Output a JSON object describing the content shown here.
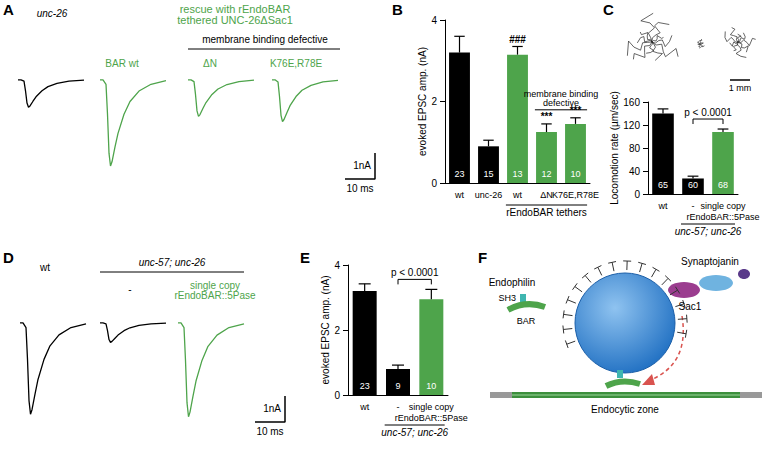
{
  "panels": [
    {
      "label": "A",
      "header": {
        "text": "rescue with rEndoBAR\ntethered UNC-26ΔSac1",
        "color": "#4ea44b"
      },
      "subheader": "membrane binding defective",
      "scale_bar": {
        "x": 10,
        "x_label": "10 ms",
        "y": 1,
        "y_label": "1nA"
      }
    },
    {
      "label": "B"
    },
    {
      "label": "C",
      "tracks_scale": {
        "value": 1,
        "label": "1 mm"
      }
    },
    {
      "label": "D",
      "group": "unc-57; unc-26",
      "scale_bar": {
        "x": 10,
        "x_label": "10 ms",
        "y": 1,
        "y_label": "1nA"
      }
    },
    {
      "label": "E"
    },
    {
      "label": "F",
      "texts": {
        "endophilin": "Endophilin",
        "sh3": "SH3",
        "bar": "BAR",
        "synaptojanin": "Synaptojanin",
        "sac1": "Sac1",
        "zone": "Endocytic zone"
      }
    }
  ],
  "chart_data": [
    {
      "panel": "A",
      "type": "line",
      "title": "unc-26",
      "x": [
        0,
        1,
        2,
        2.5,
        3,
        3.5,
        4,
        5,
        6,
        8,
        10,
        13,
        17,
        22
      ],
      "values": [
        0,
        0,
        -0.05,
        -0.42,
        -0.89,
        -1.05,
        -1.0,
        -0.82,
        -0.65,
        -0.42,
        -0.26,
        -0.14,
        -0.05,
        -0.01
      ],
      "color": "#000000",
      "xlim": [
        0,
        22
      ],
      "ylim": [
        -3.8,
        0.3
      ],
      "tick_labels": false
    },
    {
      "panel": "A",
      "type": "line",
      "title": "BAR wt",
      "x": [
        0,
        1,
        2,
        2.5,
        3,
        3.5,
        4,
        5,
        6,
        8,
        10,
        13,
        17,
        22
      ],
      "values": [
        0,
        0,
        -0.17,
        -1.32,
        -2.81,
        -3.3,
        -3.14,
        -2.57,
        -2.05,
        -1.32,
        -0.83,
        -0.43,
        -0.17,
        -0.03
      ],
      "color": "#4ea44b",
      "xlim": [
        0,
        22
      ],
      "ylim": [
        -3.8,
        0.3
      ],
      "tick_labels": false
    },
    {
      "panel": "A",
      "type": "line",
      "title": "ΔN",
      "x": [
        0,
        1,
        2,
        2.5,
        3,
        3.5,
        4,
        5,
        6,
        8,
        10,
        13,
        17,
        22
      ],
      "values": [
        0,
        0,
        -0.07,
        -0.56,
        -1.19,
        -1.4,
        -1.33,
        -1.09,
        -0.87,
        -0.56,
        -0.35,
        -0.18,
        -0.07,
        -0.01
      ],
      "color": "#4ea44b",
      "xlim": [
        0,
        22
      ],
      "ylim": [
        -3.8,
        0.3
      ],
      "tick_labels": false
    },
    {
      "panel": "A",
      "type": "line",
      "title": "K76E,R78E",
      "x": [
        0,
        1,
        2,
        2.5,
        3,
        3.5,
        4,
        5,
        6,
        8,
        10,
        13,
        17,
        22
      ],
      "values": [
        0,
        0,
        -0.08,
        -0.64,
        -1.36,
        -1.6,
        -1.52,
        -1.25,
        -0.99,
        -0.64,
        -0.4,
        -0.21,
        -0.08,
        -0.02
      ],
      "color": "#4ea44b",
      "xlim": [
        0,
        22
      ],
      "ylim": [
        -3.8,
        0.3
      ],
      "tick_labels": false
    },
    {
      "panel": "B",
      "type": "bar",
      "y_label": "evoked EPSC amp. (nA)",
      "categories": [
        "wt",
        "unc-26",
        "wt",
        "ΔN",
        "K76E,R78E"
      ],
      "values": [
        3.2,
        0.9,
        3.15,
        1.25,
        1.45
      ],
      "errors": [
        0.4,
        0.15,
        0.2,
        0.2,
        0.15
      ],
      "n": [
        23,
        15,
        13,
        12,
        10
      ],
      "colors": [
        "#000000",
        "#000000",
        "#4ea44b",
        "#4ea44b",
        "#4ea44b"
      ],
      "significance": [
        null,
        null,
        "###",
        "***",
        "***"
      ],
      "axis_group": {
        "label": "rEndoBAR tethers",
        "span": [
          2,
          4
        ]
      },
      "top_group": {
        "label": "membrane binding\ndefective",
        "span": [
          3,
          4
        ]
      },
      "ylim": [
        0,
        4
      ],
      "yticks": [
        0,
        2,
        4
      ]
    },
    {
      "panel": "C",
      "type": "bar",
      "y_label": "Locomotion rate (µm/sec)",
      "categories": [
        "wt",
        "-",
        "single copy\nrEndoBAR::5Pase"
      ],
      "values": [
        140,
        27,
        108
      ],
      "errors": [
        8,
        4,
        5
      ],
      "n": [
        65,
        60,
        68
      ],
      "colors": [
        "#000000",
        "#000000",
        "#4ea44b"
      ],
      "axis_group": {
        "label": "unc-57; unc-26",
        "span": [
          1,
          2
        ]
      },
      "comparison": {
        "label": "p < 0.0001",
        "span": [
          1,
          2
        ]
      },
      "ylim": [
        0,
        160
      ],
      "yticks": [
        0,
        40,
        80,
        120,
        160
      ]
    },
    {
      "panel": "D",
      "type": "line",
      "title": "wt",
      "x": [
        0,
        1,
        2,
        2.5,
        3,
        3.5,
        4,
        5,
        6,
        8,
        10,
        13,
        17,
        22
      ],
      "values": [
        0,
        0,
        -0.18,
        -1.4,
        -2.98,
        -3.5,
        -3.33,
        -2.73,
        -2.17,
        -1.4,
        -0.88,
        -0.46,
        -0.18,
        -0.04
      ],
      "color": "#000000",
      "xlim": [
        0,
        22
      ],
      "ylim": [
        -3.8,
        0.3
      ],
      "tick_labels": false
    },
    {
      "panel": "D",
      "type": "line",
      "title": "-",
      "x": [
        0,
        1,
        2,
        2.5,
        3,
        3.5,
        4,
        5,
        6,
        8,
        10,
        13,
        17,
        22
      ],
      "values": [
        0,
        0,
        -0.04,
        -0.3,
        -0.64,
        -0.75,
        -0.71,
        -0.59,
        -0.47,
        -0.3,
        -0.19,
        -0.1,
        -0.04,
        -0.01
      ],
      "color": "#000000",
      "xlim": [
        0,
        22
      ],
      "ylim": [
        -3.8,
        0.3
      ],
      "tick_labels": false
    },
    {
      "panel": "D",
      "type": "line",
      "title": "single copy\nrEndoBAR::5Pase",
      "x": [
        0,
        1,
        2,
        2.5,
        3,
        3.5,
        4,
        5,
        6,
        8,
        10,
        13,
        17,
        22
      ],
      "values": [
        0,
        0,
        -0.18,
        -1.44,
        -3.06,
        -3.6,
        -3.42,
        -2.81,
        -2.23,
        -1.44,
        -0.9,
        -0.47,
        -0.18,
        -0.04
      ],
      "color": "#4ea44b",
      "xlim": [
        0,
        22
      ],
      "ylim": [
        -3.8,
        0.3
      ],
      "tick_labels": false
    },
    {
      "panel": "E",
      "type": "bar",
      "y_label": "evoked EPSC amp. (nA)",
      "categories": [
        "wt",
        "-",
        "single copy\nrEndoBAR::5Pase"
      ],
      "values": [
        3.2,
        0.8,
        2.95
      ],
      "errors": [
        0.22,
        0.12,
        0.3
      ],
      "n": [
        23,
        9,
        10
      ],
      "colors": [
        "#000000",
        "#000000",
        "#4ea44b"
      ],
      "axis_group": {
        "label": "unc-57; unc-26",
        "span": [
          1,
          2
        ]
      },
      "comparison": {
        "label": "p < 0.0001",
        "span": [
          1,
          2
        ]
      },
      "ylim": [
        0,
        4
      ],
      "yticks": [
        0,
        2,
        4
      ]
    }
  ]
}
